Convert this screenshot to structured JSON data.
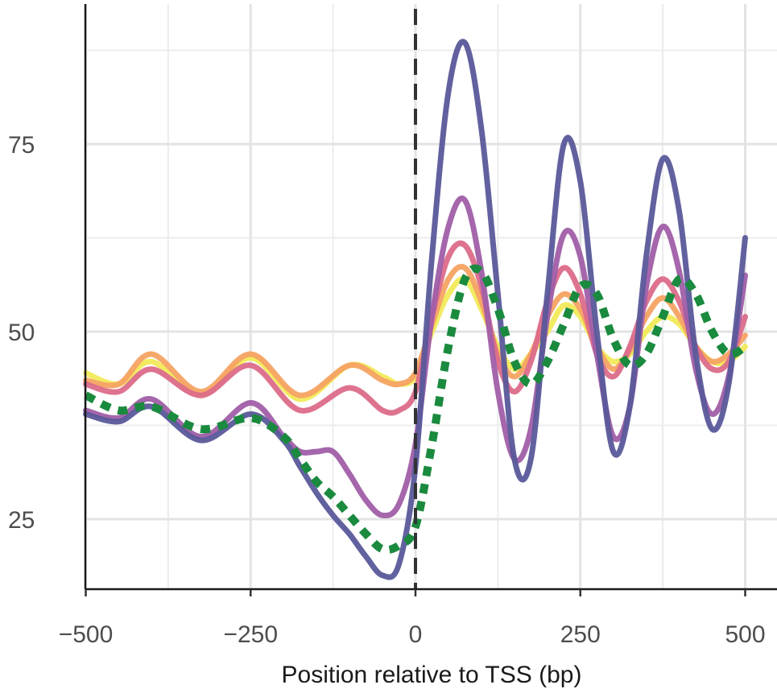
{
  "chart_data": {
    "type": "line",
    "title": "",
    "xlabel": "Position relative to TSS (bp)",
    "ylabel": "",
    "xlim": [
      -500,
      500
    ],
    "ylim": [
      15.5,
      97.5
    ],
    "x_ticks": [
      -500,
      -250,
      0,
      250,
      500
    ],
    "x_tick_labels": [
      "−500",
      "−250",
      "0",
      "250",
      "500"
    ],
    "y_ticks": [
      25,
      50,
      75
    ],
    "y_tick_labels": [
      "25",
      "50",
      "75"
    ],
    "grid": true,
    "legend": "none",
    "reference_line": {
      "x": 0,
      "style": "dashed",
      "color": "#333333"
    },
    "series": [
      {
        "color": "#f1ea5a",
        "style": "solid",
        "points": [
          [
            -500,
            44.5
          ],
          [
            -450,
            43
          ],
          [
            -400,
            46
          ],
          [
            -325,
            41.5
          ],
          [
            -250,
            46.5
          ],
          [
            -175,
            41
          ],
          [
            -100,
            45.5
          ],
          [
            -50,
            44
          ],
          [
            -25,
            43
          ],
          [
            0,
            44
          ],
          [
            25,
            50
          ],
          [
            50,
            55
          ],
          [
            75,
            57
          ],
          [
            100,
            53
          ],
          [
            125,
            48
          ],
          [
            150,
            45
          ],
          [
            175,
            47
          ],
          [
            200,
            50
          ],
          [
            225,
            53.5
          ],
          [
            250,
            52
          ],
          [
            275,
            48
          ],
          [
            300,
            46
          ],
          [
            325,
            47
          ],
          [
            350,
            50
          ],
          [
            375,
            52
          ],
          [
            400,
            51
          ],
          [
            425,
            48
          ],
          [
            450,
            46
          ],
          [
            475,
            46
          ],
          [
            500,
            48
          ]
        ]
      },
      {
        "color": "#f6a363",
        "style": "solid",
        "points": [
          [
            -500,
            43.5
          ],
          [
            -450,
            43
          ],
          [
            -400,
            47
          ],
          [
            -325,
            42
          ],
          [
            -250,
            47
          ],
          [
            -175,
            41.5
          ],
          [
            -100,
            45.5
          ],
          [
            -50,
            43.5
          ],
          [
            -25,
            43
          ],
          [
            0,
            44.5
          ],
          [
            25,
            51
          ],
          [
            50,
            57
          ],
          [
            75,
            58.5
          ],
          [
            100,
            54
          ],
          [
            125,
            47
          ],
          [
            150,
            44
          ],
          [
            175,
            47
          ],
          [
            200,
            52
          ],
          [
            225,
            55
          ],
          [
            250,
            53
          ],
          [
            275,
            48
          ],
          [
            300,
            45
          ],
          [
            325,
            47.5
          ],
          [
            350,
            52
          ],
          [
            375,
            54.5
          ],
          [
            400,
            52
          ],
          [
            425,
            48
          ],
          [
            450,
            46
          ],
          [
            475,
            47
          ],
          [
            500,
            49.5
          ]
        ]
      },
      {
        "color": "#dc6b8a",
        "style": "solid",
        "points": [
          [
            -500,
            43
          ],
          [
            -450,
            42
          ],
          [
            -400,
            45
          ],
          [
            -325,
            41.5
          ],
          [
            -250,
            45.5
          ],
          [
            -175,
            39.5
          ],
          [
            -100,
            42.5
          ],
          [
            -50,
            39.5
          ],
          [
            -25,
            39.5
          ],
          [
            0,
            42
          ],
          [
            25,
            52
          ],
          [
            50,
            60
          ],
          [
            75,
            61.5
          ],
          [
            100,
            56
          ],
          [
            125,
            46
          ],
          [
            150,
            42
          ],
          [
            175,
            46
          ],
          [
            200,
            54
          ],
          [
            225,
            58.5
          ],
          [
            250,
            55
          ],
          [
            275,
            47
          ],
          [
            300,
            44
          ],
          [
            325,
            48
          ],
          [
            350,
            54
          ],
          [
            375,
            57
          ],
          [
            400,
            54
          ],
          [
            425,
            48
          ],
          [
            450,
            45
          ],
          [
            475,
            46
          ],
          [
            500,
            52
          ]
        ]
      },
      {
        "color": "#a05ea8",
        "style": "solid",
        "points": [
          [
            -500,
            39.5
          ],
          [
            -450,
            38.5
          ],
          [
            -400,
            41
          ],
          [
            -325,
            36
          ],
          [
            -250,
            40.5
          ],
          [
            -200,
            36
          ],
          [
            -175,
            34
          ],
          [
            -150,
            34
          ],
          [
            -125,
            34
          ],
          [
            -100,
            31
          ],
          [
            -75,
            27.5
          ],
          [
            -50,
            25.5
          ],
          [
            -25,
            27
          ],
          [
            0,
            35
          ],
          [
            25,
            52
          ],
          [
            50,
            64
          ],
          [
            75,
            67.5
          ],
          [
            100,
            58
          ],
          [
            125,
            42
          ],
          [
            150,
            33
          ],
          [
            175,
            37
          ],
          [
            200,
            52
          ],
          [
            225,
            63
          ],
          [
            250,
            60
          ],
          [
            275,
            47
          ],
          [
            300,
            36
          ],
          [
            325,
            40
          ],
          [
            350,
            56
          ],
          [
            375,
            64
          ],
          [
            400,
            58
          ],
          [
            425,
            45
          ],
          [
            450,
            39
          ],
          [
            475,
            44
          ],
          [
            500,
            57.5
          ]
        ]
      },
      {
        "color": "#5a589a",
        "style": "solid",
        "points": [
          [
            -500,
            39
          ],
          [
            -450,
            38
          ],
          [
            -400,
            40
          ],
          [
            -325,
            35.5
          ],
          [
            -250,
            39
          ],
          [
            -200,
            35.5
          ],
          [
            -175,
            32
          ],
          [
            -150,
            28.5
          ],
          [
            -125,
            25.5
          ],
          [
            -100,
            23
          ],
          [
            -75,
            20
          ],
          [
            -50,
            17.5
          ],
          [
            -25,
            19
          ],
          [
            0,
            32
          ],
          [
            25,
            60
          ],
          [
            50,
            82
          ],
          [
            75,
            88.5
          ],
          [
            100,
            77
          ],
          [
            125,
            55
          ],
          [
            150,
            33
          ],
          [
            175,
            33
          ],
          [
            200,
            55
          ],
          [
            225,
            75
          ],
          [
            250,
            70
          ],
          [
            275,
            50
          ],
          [
            300,
            34
          ],
          [
            325,
            40
          ],
          [
            350,
            60
          ],
          [
            375,
            73
          ],
          [
            400,
            66
          ],
          [
            425,
            47
          ],
          [
            450,
            37
          ],
          [
            475,
            43
          ],
          [
            500,
            62.5
          ]
        ]
      },
      {
        "color": "#1a8a3e",
        "style": "dotted",
        "points": [
          [
            -500,
            41.5
          ],
          [
            -450,
            39.5
          ],
          [
            -400,
            40
          ],
          [
            -325,
            37
          ],
          [
            -250,
            38.5
          ],
          [
            -200,
            36
          ],
          [
            -175,
            33
          ],
          [
            -150,
            30
          ],
          [
            -125,
            28
          ],
          [
            -100,
            25.5
          ],
          [
            -75,
            23
          ],
          [
            -50,
            21
          ],
          [
            -25,
            21.5
          ],
          [
            0,
            24
          ],
          [
            25,
            35
          ],
          [
            50,
            48
          ],
          [
            75,
            57
          ],
          [
            100,
            58
          ],
          [
            125,
            53
          ],
          [
            150,
            46
          ],
          [
            175,
            43
          ],
          [
            200,
            46
          ],
          [
            225,
            51
          ],
          [
            250,
            56
          ],
          [
            275,
            55
          ],
          [
            300,
            49
          ],
          [
            325,
            45.5
          ],
          [
            350,
            47
          ],
          [
            375,
            52
          ],
          [
            400,
            57
          ],
          [
            425,
            55
          ],
          [
            450,
            50
          ],
          [
            475,
            47
          ],
          [
            500,
            48
          ]
        ]
      }
    ]
  }
}
